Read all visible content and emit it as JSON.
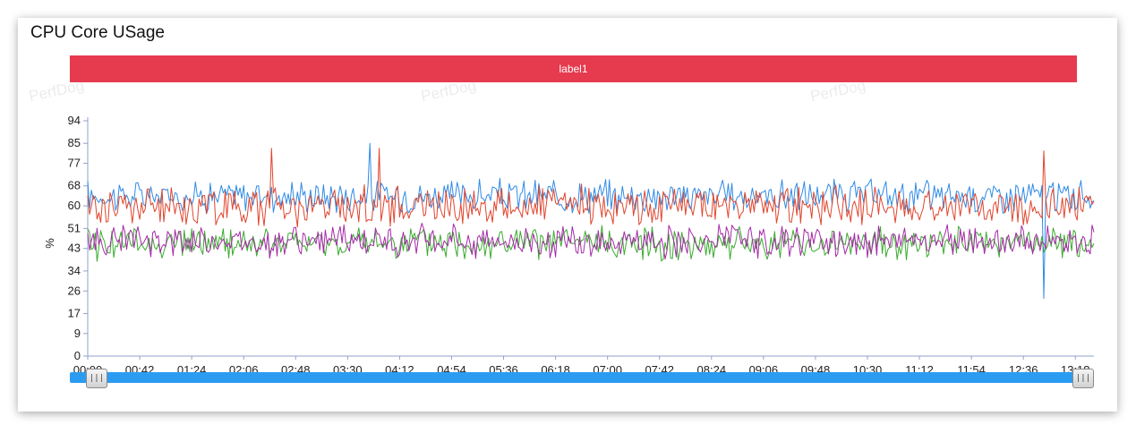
{
  "title": "CPU Core USage",
  "label_bar": "label1",
  "watermark": "PerfDog",
  "slider": {
    "start": 0,
    "end": 1,
    "handle_glyph": "|||"
  },
  "chart_data": {
    "type": "line",
    "title": "CPU Core USage",
    "ylabel": "%",
    "xlabel": "",
    "y_ticks": [
      0,
      9,
      17,
      26,
      34,
      43,
      51,
      60,
      68,
      77,
      85,
      94
    ],
    "ylim": [
      0,
      94
    ],
    "x_ticks": [
      "00:00",
      "00:42",
      "01:24",
      "02:06",
      "02:48",
      "03:30",
      "04:12",
      "04:54",
      "05:36",
      "06:18",
      "07:00",
      "07:42",
      "08:24",
      "09:06",
      "09:48",
      "10:30",
      "11:12",
      "11:54",
      "12:36",
      "13:18"
    ],
    "x_range_seconds": [
      0,
      813
    ],
    "grid": false,
    "legend": "none",
    "series": [
      {
        "color": "#2f8be6",
        "mean": 64,
        "amplitude": 5,
        "spikes": [
          [
            228,
            85
          ],
          [
            773,
            23
          ]
        ]
      },
      {
        "color": "#e0452d",
        "mean": 60,
        "amplitude": 6,
        "spikes": [
          [
            148,
            83
          ],
          [
            236,
            83
          ],
          [
            773,
            82
          ]
        ]
      },
      {
        "color": "#3aab2e",
        "mean": 45,
        "amplitude": 5,
        "spikes": []
      },
      {
        "color": "#a52aa8",
        "mean": 46,
        "amplitude": 5,
        "spikes": []
      }
    ]
  },
  "colors": {
    "label_bar": "#e63a4f",
    "slider": "#2b9cf2"
  }
}
